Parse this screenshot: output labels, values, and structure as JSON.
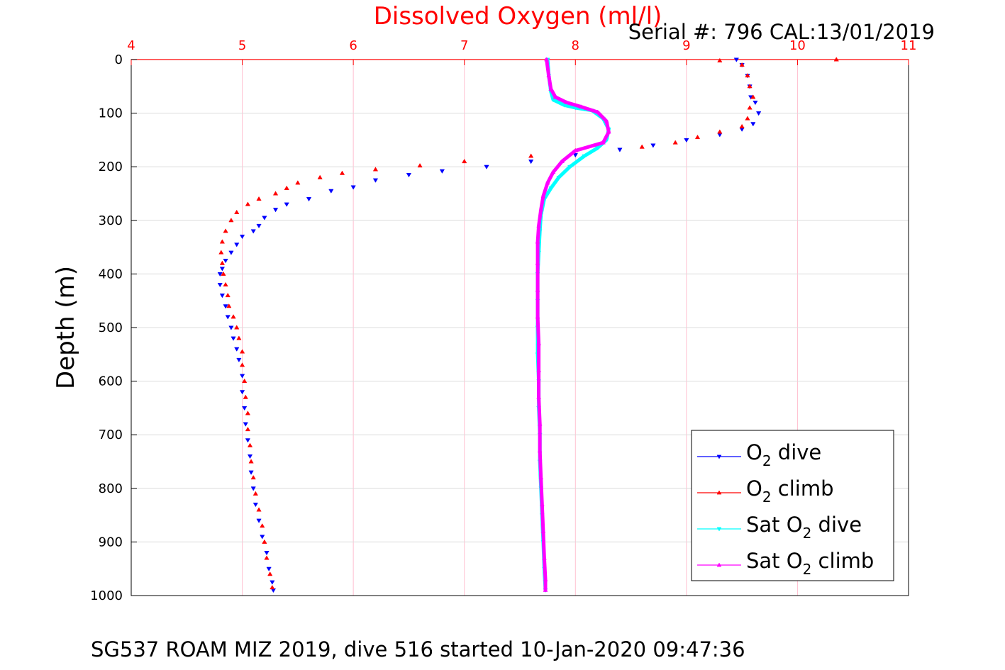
{
  "chart_data": {
    "type": "scatter",
    "title": "Dissolved Oxygen (ml/l)",
    "serial_label": "Serial #: 796  CAL:13/01/2019",
    "ylabel": "Depth (m)",
    "footer": "SG537 ROAM MIZ 2019, dive 516 started 10-Jan-2020 09:47:36",
    "xlim": [
      4,
      11
    ],
    "ylim": [
      0,
      1000
    ],
    "y_reversed": true,
    "x_axis_position": "top",
    "grid": true,
    "x_ticks": [
      "4",
      "5",
      "6",
      "7",
      "8",
      "9",
      "10",
      "11"
    ],
    "y_ticks": [
      "0",
      "100",
      "200",
      "300",
      "400",
      "500",
      "600",
      "700",
      "800",
      "900",
      "1000"
    ],
    "colors": {
      "title": "#ff0000",
      "x_ticks": "#ff0000",
      "grid": "#ffc0d0"
    },
    "legend": {
      "position": "lower-right",
      "entries": [
        {
          "text": "O",
          "sub": "2",
          "suffix": " dive",
          "color": "#0000ff",
          "marker": "triangle-down"
        },
        {
          "text": "O",
          "sub": "2",
          "suffix": " climb",
          "color": "#ff0000",
          "marker": "triangle-up"
        },
        {
          "text": "Sat O",
          "sub": "2",
          "suffix": " dive",
          "color": "#00ffff",
          "marker": "triangle-down"
        },
        {
          "text": "Sat O",
          "sub": "2",
          "suffix": " climb",
          "color": "#ff00ff",
          "marker": "triangle-up"
        }
      ]
    },
    "series": [
      {
        "name": "O2 dive",
        "color": "#0000ff",
        "marker": "triangle-down",
        "points": [
          [
            9.45,
            0
          ],
          [
            9.5,
            10
          ],
          [
            9.55,
            30
          ],
          [
            9.57,
            50
          ],
          [
            9.58,
            70
          ],
          [
            9.62,
            80
          ],
          [
            9.65,
            100
          ],
          [
            9.6,
            120
          ],
          [
            9.5,
            130
          ],
          [
            9.3,
            140
          ],
          [
            9.0,
            150
          ],
          [
            8.7,
            160
          ],
          [
            8.4,
            168
          ],
          [
            8.0,
            178
          ],
          [
            7.6,
            190
          ],
          [
            7.2,
            200
          ],
          [
            6.8,
            208
          ],
          [
            6.5,
            215
          ],
          [
            6.2,
            225
          ],
          [
            6.0,
            238
          ],
          [
            5.8,
            245
          ],
          [
            5.6,
            260
          ],
          [
            5.4,
            270
          ],
          [
            5.3,
            280
          ],
          [
            5.2,
            295
          ],
          [
            5.15,
            310
          ],
          [
            5.1,
            320
          ],
          [
            5.0,
            330
          ],
          [
            4.95,
            345
          ],
          [
            4.9,
            360
          ],
          [
            4.85,
            375
          ],
          [
            4.82,
            390
          ],
          [
            4.8,
            400
          ],
          [
            4.8,
            420
          ],
          [
            4.82,
            440
          ],
          [
            4.85,
            460
          ],
          [
            4.87,
            480
          ],
          [
            4.9,
            500
          ],
          [
            4.92,
            520
          ],
          [
            4.95,
            540
          ],
          [
            4.97,
            560
          ],
          [
            5.0,
            590
          ],
          [
            5.0,
            620
          ],
          [
            5.02,
            650
          ],
          [
            5.03,
            680
          ],
          [
            5.05,
            710
          ],
          [
            5.07,
            740
          ],
          [
            5.08,
            770
          ],
          [
            5.1,
            800
          ],
          [
            5.12,
            830
          ],
          [
            5.15,
            860
          ],
          [
            5.18,
            890
          ],
          [
            5.22,
            920
          ],
          [
            5.24,
            950
          ],
          [
            5.27,
            975
          ],
          [
            5.28,
            990
          ]
        ]
      },
      {
        "name": "O2 climb",
        "color": "#ff0000",
        "marker": "triangle-up",
        "points": [
          [
            10.35,
            0
          ],
          [
            9.3,
            2
          ],
          [
            9.5,
            10
          ],
          [
            9.55,
            30
          ],
          [
            9.57,
            50
          ],
          [
            9.6,
            70
          ],
          [
            9.57,
            90
          ],
          [
            9.55,
            110
          ],
          [
            9.5,
            125
          ],
          [
            9.3,
            135
          ],
          [
            9.1,
            145
          ],
          [
            8.9,
            155
          ],
          [
            8.6,
            163
          ],
          [
            8.0,
            170
          ],
          [
            7.6,
            180
          ],
          [
            7.0,
            190
          ],
          [
            6.6,
            198
          ],
          [
            6.2,
            205
          ],
          [
            5.9,
            212
          ],
          [
            5.7,
            220
          ],
          [
            5.5,
            230
          ],
          [
            5.4,
            240
          ],
          [
            5.3,
            250
          ],
          [
            5.15,
            260
          ],
          [
            5.05,
            270
          ],
          [
            4.95,
            285
          ],
          [
            4.9,
            300
          ],
          [
            4.85,
            320
          ],
          [
            4.82,
            340
          ],
          [
            4.81,
            360
          ],
          [
            4.82,
            380
          ],
          [
            4.83,
            400
          ],
          [
            4.85,
            420
          ],
          [
            4.87,
            440
          ],
          [
            4.88,
            460
          ],
          [
            4.92,
            480
          ],
          [
            4.95,
            500
          ],
          [
            4.97,
            520
          ],
          [
            5.0,
            545
          ],
          [
            5.0,
            570
          ],
          [
            5.02,
            600
          ],
          [
            5.03,
            630
          ],
          [
            5.05,
            660
          ],
          [
            5.05,
            690
          ],
          [
            5.07,
            720
          ],
          [
            5.08,
            750
          ],
          [
            5.1,
            780
          ],
          [
            5.12,
            810
          ],
          [
            5.15,
            840
          ],
          [
            5.18,
            870
          ],
          [
            5.2,
            900
          ],
          [
            5.22,
            930
          ],
          [
            5.25,
            960
          ],
          [
            5.27,
            985
          ]
        ]
      },
      {
        "name": "Sat O2 dive",
        "color": "#00ffff",
        "marker": "triangle-down",
        "points": [
          [
            7.75,
            0
          ],
          [
            7.76,
            30
          ],
          [
            7.78,
            60
          ],
          [
            7.8,
            75
          ],
          [
            7.9,
            85
          ],
          [
            8.0,
            90
          ],
          [
            8.15,
            95
          ],
          [
            8.25,
            110
          ],
          [
            8.3,
            130
          ],
          [
            8.28,
            150
          ],
          [
            8.2,
            165
          ],
          [
            8.08,
            180
          ],
          [
            7.95,
            200
          ],
          [
            7.85,
            220
          ],
          [
            7.78,
            240
          ],
          [
            7.72,
            260
          ],
          [
            7.69,
            290
          ],
          [
            7.68,
            320
          ],
          [
            7.67,
            360
          ],
          [
            7.66,
            400
          ],
          [
            7.66,
            450
          ],
          [
            7.66,
            500
          ],
          [
            7.66,
            550
          ],
          [
            7.67,
            600
          ],
          [
            7.67,
            650
          ],
          [
            7.68,
            700
          ],
          [
            7.68,
            750
          ],
          [
            7.69,
            800
          ],
          [
            7.7,
            850
          ],
          [
            7.71,
            900
          ],
          [
            7.72,
            950
          ],
          [
            7.73,
            990
          ]
        ]
      },
      {
        "name": "Sat O2 climb",
        "color": "#ff00ff",
        "marker": "triangle-up",
        "points": [
          [
            7.74,
            0
          ],
          [
            7.76,
            30
          ],
          [
            7.78,
            55
          ],
          [
            7.82,
            70
          ],
          [
            7.92,
            80
          ],
          [
            8.05,
            88
          ],
          [
            8.2,
            98
          ],
          [
            8.28,
            115
          ],
          [
            8.3,
            135
          ],
          [
            8.25,
            155
          ],
          [
            8.0,
            170
          ],
          [
            7.88,
            190
          ],
          [
            7.8,
            210
          ],
          [
            7.75,
            230
          ],
          [
            7.71,
            255
          ],
          [
            7.69,
            280
          ],
          [
            7.67,
            310
          ],
          [
            7.66,
            340
          ],
          [
            7.66,
            380
          ],
          [
            7.66,
            430
          ],
          [
            7.66,
            480
          ],
          [
            7.67,
            530
          ],
          [
            7.67,
            580
          ],
          [
            7.67,
            630
          ],
          [
            7.68,
            680
          ],
          [
            7.68,
            730
          ],
          [
            7.69,
            780
          ],
          [
            7.7,
            830
          ],
          [
            7.71,
            880
          ],
          [
            7.72,
            930
          ],
          [
            7.73,
            970
          ],
          [
            7.73,
            990
          ]
        ]
      }
    ]
  }
}
